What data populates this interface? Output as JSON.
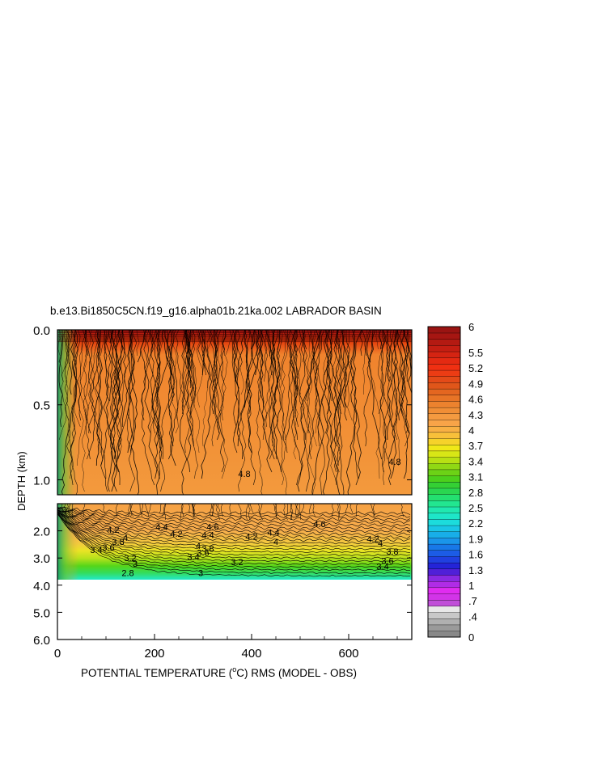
{
  "chart_data": {
    "type": "contour",
    "title": "b.e13.Bi1850C5CN.f19_g16.alpha01b.21ka.002 LABRADOR BASIN",
    "xlabel": "POTENTIAL TEMPERATURE (",
    "xlabel_unit": "o",
    "xlabel_end": "C) RMS (MODEL - OBS)",
    "ylabel": "DEPTH (km)",
    "xlim": [
      0,
      730
    ],
    "x_ticks": [
      "0",
      "200",
      "400",
      "600"
    ],
    "x_tick_values": [
      0,
      200,
      400,
      600
    ],
    "upper_panel": {
      "ylim": [
        0.0,
        1.1
      ],
      "y_ticks": [
        "0.0",
        "0.5",
        "1.0"
      ],
      "y_tick_values": [
        0.0,
        0.5,
        1.0
      ]
    },
    "lower_panel": {
      "ylim": [
        1.0,
        6.0
      ],
      "y_ticks": [
        "2.0",
        "3.0",
        "4.0",
        "5.0",
        "6.0"
      ],
      "y_tick_values": [
        2.0,
        3.0,
        4.0,
        5.0,
        6.0
      ],
      "data_bottom_depth": 3.8
    },
    "colorbar": {
      "labels": [
        "6",
        "5.5",
        "5.2",
        "4.9",
        "4.6",
        "4.3",
        "4",
        "3.7",
        "3.4",
        "3.1",
        "2.8",
        "2.5",
        "2.2",
        "1.9",
        "1.6",
        "1.3",
        "1",
        ".7",
        ".4",
        "0"
      ],
      "label_values": [
        6,
        5.5,
        5.2,
        4.9,
        4.6,
        4.3,
        4,
        3.7,
        3.4,
        3.1,
        2.8,
        2.5,
        2.2,
        1.9,
        1.6,
        1.3,
        1,
        0.7,
        0.4,
        0
      ]
    },
    "contour_labels": [
      {
        "text": "3",
        "x": 295,
        "y": 3.55
      },
      {
        "text": "3.2",
        "x": 370,
        "y": 3.15
      },
      {
        "text": "3.4",
        "x": 280,
        "y": 2.95
      },
      {
        "text": "3.6",
        "x": 300,
        "y": 2.8
      },
      {
        "text": "3.8",
        "x": 310,
        "y": 2.65
      },
      {
        "text": "4",
        "x": 290,
        "y": 2.55
      },
      {
        "text": "4.2",
        "x": 245,
        "y": 2.1
      },
      {
        "text": "4.2",
        "x": 400,
        "y": 2.2
      },
      {
        "text": "4",
        "x": 450,
        "y": 2.4
      },
      {
        "text": "4.4",
        "x": 445,
        "y": 2.05
      },
      {
        "text": "4.6",
        "x": 540,
        "y": 1.75
      },
      {
        "text": "4.6",
        "x": 320,
        "y": 1.85
      },
      {
        "text": "4.4",
        "x": 310,
        "y": 2.15
      },
      {
        "text": "4.2",
        "x": 650,
        "y": 2.3
      },
      {
        "text": "4",
        "x": 665,
        "y": 2.45
      },
      {
        "text": "3.8",
        "x": 690,
        "y": 2.75
      },
      {
        "text": "3.6",
        "x": 680,
        "y": 3.1
      },
      {
        "text": "3.4",
        "x": 670,
        "y": 3.3
      },
      {
        "text": "3.2",
        "x": 150,
        "y": 3.0
      },
      {
        "text": "3",
        "x": 160,
        "y": 3.2
      },
      {
        "text": "2.8",
        "x": 145,
        "y": 3.55
      },
      {
        "text": "3.4",
        "x": 80,
        "y": 2.7
      },
      {
        "text": "3.6",
        "x": 105,
        "y": 2.6
      },
      {
        "text": "3.8",
        "x": 125,
        "y": 2.4
      },
      {
        "text": "4.2",
        "x": 115,
        "y": 1.95
      },
      {
        "text": "4",
        "x": 140,
        "y": 2.25
      },
      {
        "text": "4.4",
        "x": 215,
        "y": 1.85
      },
      {
        "text": "4.8",
        "x": 385,
        "y": 0.96
      },
      {
        "text": "4.8",
        "x": 695,
        "y": 0.88
      }
    ]
  }
}
